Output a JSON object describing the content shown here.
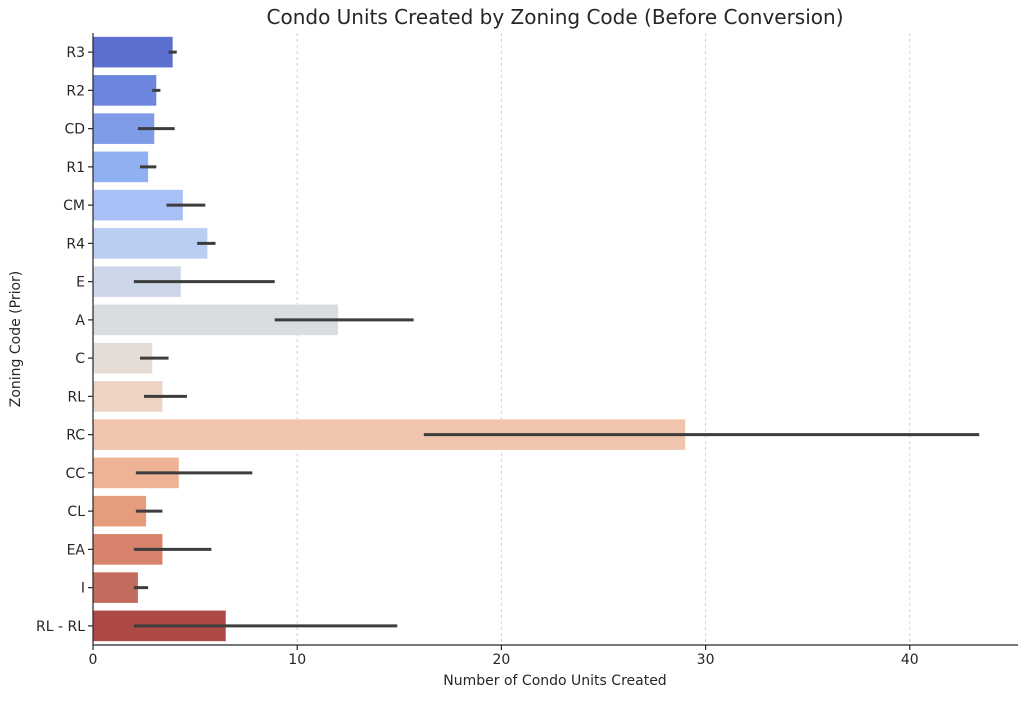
{
  "chart_data": {
    "type": "bar",
    "orientation": "horizontal",
    "title": "Condo Units Created by Zoning Code (Before Conversion)",
    "xlabel": "Number of Condo Units Created",
    "ylabel": "Zoning Code (Prior)",
    "xlim": [
      0,
      45
    ],
    "xticks": [
      0,
      10,
      20,
      30,
      40
    ],
    "grid": "vertical dashed",
    "categories": [
      "R3",
      "R2",
      "CD",
      "R1",
      "CM",
      "R4",
      "E",
      "A",
      "C",
      "RL",
      "RC",
      "CC",
      "CL",
      "EA",
      "I",
      "RL - RL"
    ],
    "values": [
      3.9,
      3.1,
      3.0,
      2.7,
      4.4,
      5.6,
      4.3,
      12.0,
      2.9,
      3.4,
      29.0,
      4.2,
      2.6,
      3.4,
      2.2,
      6.5
    ],
    "error_bars": [
      [
        3.7,
        4.1
      ],
      [
        2.9,
        3.3
      ],
      [
        2.2,
        4.0
      ],
      [
        2.3,
        3.1
      ],
      [
        3.6,
        5.5
      ],
      [
        5.1,
        6.0
      ],
      [
        2.0,
        8.9
      ],
      [
        8.9,
        15.7
      ],
      [
        2.3,
        3.7
      ],
      [
        2.5,
        4.6
      ],
      [
        16.2,
        43.4
      ],
      [
        2.1,
        7.8
      ],
      [
        2.1,
        3.4
      ],
      [
        2.0,
        5.8
      ],
      [
        2.0,
        2.7
      ],
      [
        2.0,
        14.9
      ]
    ],
    "colors": [
      "#5a6fd0",
      "#6c86dd",
      "#7f9ce9",
      "#91b0f2",
      "#a7c1f6",
      "#bacef3",
      "#ccd7ea",
      "#d9dce1",
      "#e6dcd6",
      "#edd3c4",
      "#f1c5ad",
      "#eeb295",
      "#e59d7e",
      "#d7826a",
      "#c36b5c",
      "#ae4a45"
    ],
    "error_color": "#3d3d3d"
  }
}
